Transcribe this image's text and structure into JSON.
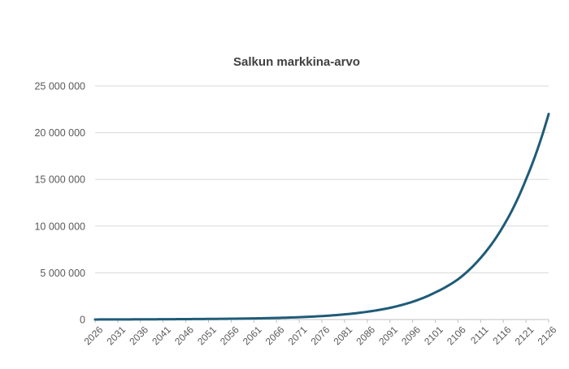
{
  "chart_data": {
    "type": "line",
    "title": "Salkun markkina-arvo",
    "xlabel": "",
    "ylabel": "",
    "ylim": [
      0,
      25000000
    ],
    "yticks": [
      0,
      5000000,
      10000000,
      15000000,
      20000000,
      25000000
    ],
    "ytick_labels": [
      "0",
      "5 000 000",
      "10 000 000",
      "15 000 000",
      "20 000 000",
      "25 000 000"
    ],
    "xlim": [
      2026,
      2126
    ],
    "xtick_labels": [
      "2026",
      "2031",
      "2036",
      "2041",
      "2046",
      "2051",
      "2056",
      "2061",
      "2066",
      "2071",
      "2076",
      "2081",
      "2086",
      "2091",
      "2096",
      "2101",
      "2106",
      "2111",
      "2116",
      "2121",
      "2126"
    ],
    "grid": "horizontal",
    "legend": "none",
    "line_color": "#1f5b78",
    "series": [
      {
        "x": [
          2026,
          2031,
          2036,
          2041,
          2046,
          2051,
          2056,
          2061,
          2066,
          2071,
          2076,
          2081,
          2086,
          2091,
          2096,
          2101,
          2106,
          2111,
          2116,
          2121,
          2126
        ],
        "values": [
          5000,
          11000,
          20000,
          30000,
          45000,
          62000,
          85000,
          120000,
          170000,
          250000,
          370000,
          550000,
          830000,
          1250000,
          1900000,
          2900000,
          4300000,
          6600000,
          10000000,
          15000000,
          22000000
        ]
      }
    ]
  }
}
